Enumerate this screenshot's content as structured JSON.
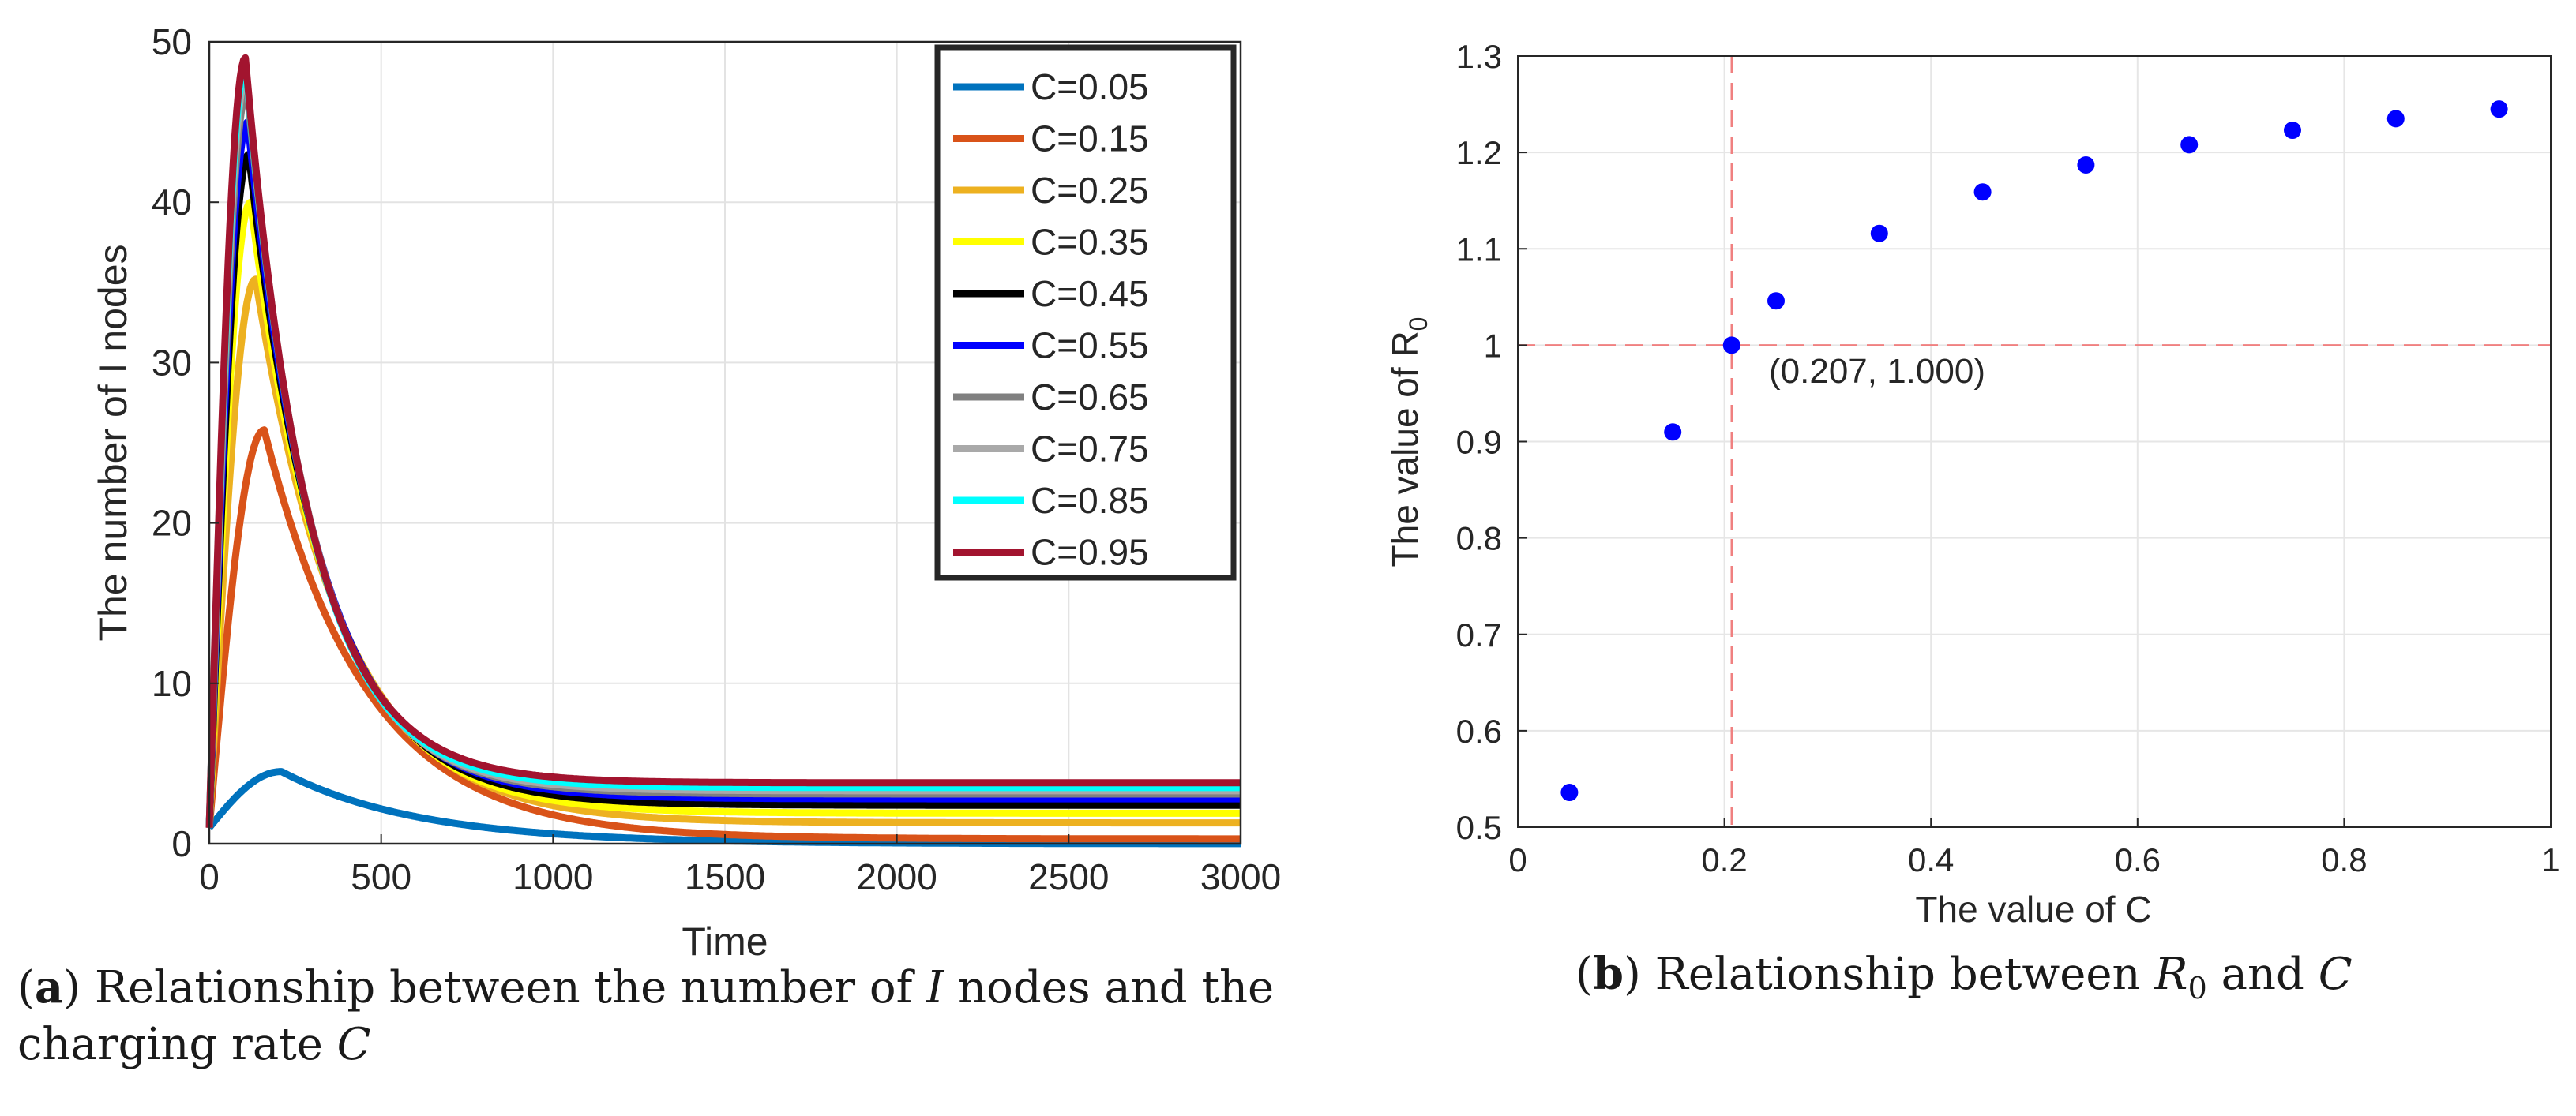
{
  "chart_data": [
    {
      "type": "line",
      "panel": "a",
      "xlabel": "Time",
      "ylabel": "The number of I nodes",
      "xlim": [
        0,
        3000
      ],
      "ylim": [
        0,
        50
      ],
      "xticks": [
        0,
        500,
        1000,
        1500,
        2000,
        2500,
        3000
      ],
      "yticks": [
        0,
        10,
        20,
        30,
        40,
        50
      ],
      "grid": true,
      "legend": "top-right",
      "series": [
        {
          "name": "C=0.05",
          "color": "#0072BD",
          "peak_t": 210,
          "peak": 4.5,
          "plateau": 0.0
        },
        {
          "name": "C=0.15",
          "color": "#D95319",
          "peak_t": 160,
          "peak": 25.8,
          "plateau": 0.3
        },
        {
          "name": "C=0.25",
          "color": "#EDB120",
          "peak_t": 135,
          "peak": 35.2,
          "plateau": 1.3
        },
        {
          "name": "C=0.35",
          "color": "#FFFF00",
          "peak_t": 120,
          "peak": 40.0,
          "plateau": 1.9
        },
        {
          "name": "C=0.45",
          "color": "#000000",
          "peak_t": 115,
          "peak": 43.0,
          "plateau": 2.4
        },
        {
          "name": "C=0.55",
          "color": "#0000FF",
          "peak_t": 112,
          "peak": 45.0,
          "plateau": 2.8
        },
        {
          "name": "C=0.65",
          "color": "#808080",
          "peak_t": 110,
          "peak": 47.0,
          "plateau": 3.1
        },
        {
          "name": "C=0.75",
          "color": "#A9A9A9",
          "peak_t": 108,
          "peak": 48.0,
          "plateau": 3.3
        },
        {
          "name": "C=0.85",
          "color": "#00FFFF",
          "peak_t": 106,
          "peak": 48.5,
          "plateau": 3.5
        },
        {
          "name": "C=0.95",
          "color": "#A2142F",
          "peak_t": 105,
          "peak": 49.0,
          "plateau": 3.8
        }
      ],
      "initial_value": 1
    },
    {
      "type": "scatter",
      "panel": "b",
      "xlabel": "The value of C",
      "ylabel_prefix": "The value of R",
      "ylabel_sub": "0",
      "xlim": [
        0,
        1
      ],
      "ylim": [
        0.5,
        1.3
      ],
      "xticks": [
        0,
        0.2,
        0.4,
        0.6,
        0.8,
        1
      ],
      "yticks": [
        0.5,
        0.6,
        0.7,
        0.8,
        0.9,
        1,
        1.1,
        1.2,
        1.3
      ],
      "grid": true,
      "point_color": "#0000FF",
      "x": [
        0.05,
        0.15,
        0.207,
        0.25,
        0.35,
        0.45,
        0.55,
        0.65,
        0.75,
        0.85,
        0.95
      ],
      "y": [
        0.536,
        0.91,
        1.0,
        1.046,
        1.116,
        1.159,
        1.187,
        1.208,
        1.223,
        1.235,
        1.245
      ],
      "reference_lines": {
        "x": 0.207,
        "y": 1.0,
        "color": "#F08080"
      },
      "annotation": "(0.207, 1.000)"
    }
  ],
  "captions": {
    "a": {
      "label": "a",
      "text_pre": "Relationship between the number of",
      "var": "I",
      "text_mid": "nodes and the",
      "line2_pre": "charging rate",
      "line2_var": "C"
    },
    "b": {
      "label": "b",
      "text_pre": "Relationship between",
      "var1": "R",
      "var1_sub": "0",
      "text_mid": "and",
      "var2": "C"
    }
  }
}
